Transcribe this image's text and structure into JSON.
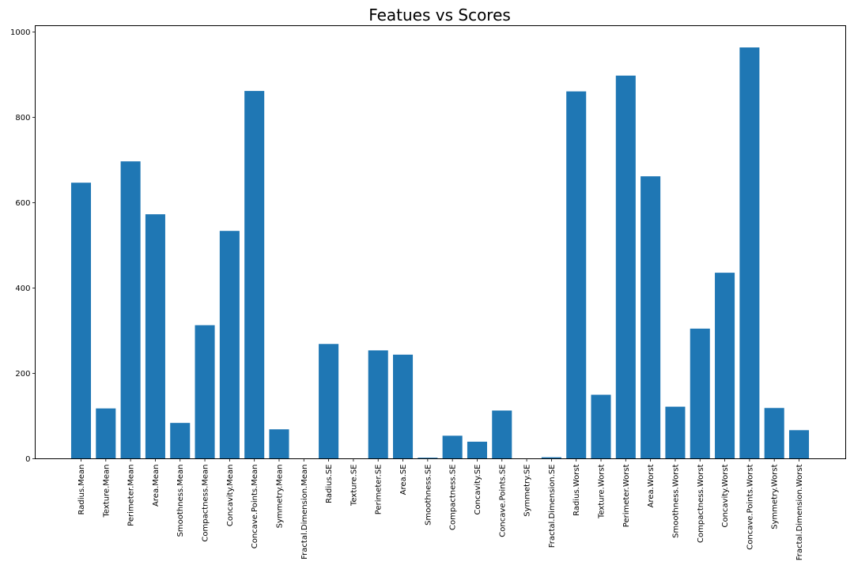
{
  "chart_data": {
    "type": "bar",
    "title": "Featues vs Scores",
    "xlabel": "",
    "ylabel": "",
    "ylim": [
      0,
      1015
    ],
    "yticks": [
      0,
      200,
      400,
      600,
      800,
      1000
    ],
    "bar_color": "#1f77b4",
    "grid": false,
    "categories": [
      "Radius.Mean",
      "Texture.Mean",
      "Perimeter.Mean",
      "Area.Mean",
      "Smoothness.Mean",
      "Compactness.Mean",
      "Concavity.Mean",
      "Concave.Points.Mean",
      "Symmetry.Mean",
      "Fractal.Dimension.Mean",
      "Radius.SE",
      "Texture.SE",
      "Perimeter.SE",
      "Area.SE",
      "Smoothness.SE",
      "Compactness.SE",
      "Concavity.SE",
      "Concave.Points.SE",
      "Symmetry.SE",
      "Fractal.Dimension.SE",
      "Radius.Worst",
      "Texture.Worst",
      "Perimeter.Worst",
      "Area.Worst",
      "Smoothness.Worst",
      "Compactness.Worst",
      "Concavity.Worst",
      "Concave.Points.Worst",
      "Symmetry.Worst",
      "Fractal.Dimension.Worst"
    ],
    "values": [
      647,
      118,
      697,
      573,
      84,
      313,
      534,
      862,
      69,
      0.1,
      269,
      0.1,
      254,
      244,
      2.5,
      54,
      40,
      113,
      0.03,
      3.5,
      861,
      150,
      898,
      662,
      122,
      305,
      436,
      964,
      119,
      67
    ]
  }
}
